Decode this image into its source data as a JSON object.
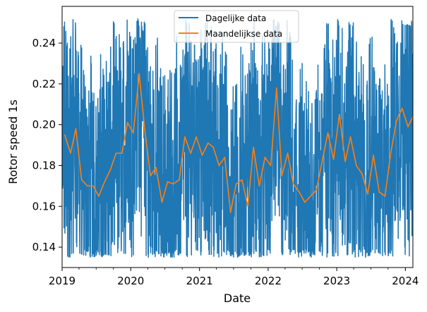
{
  "chart_data": {
    "type": "line",
    "xlabel": "Date",
    "ylabel": "Rotor speed 1s",
    "x_range": [
      "2019-01-01",
      "2024-02-10"
    ],
    "ylim": [
      0.13,
      0.258
    ],
    "x_ticks": [
      {
        "date": "2019-01-01",
        "label": "2019"
      },
      {
        "date": "2020-01-01",
        "label": "2020"
      },
      {
        "date": "2021-01-01",
        "label": "2021"
      },
      {
        "date": "2022-01-01",
        "label": "2022"
      },
      {
        "date": "2023-01-01",
        "label": "2023"
      },
      {
        "date": "2024-01-01",
        "label": "2024"
      }
    ],
    "y_ticks": [
      0.14,
      0.16,
      0.18,
      0.2,
      0.22,
      0.24
    ],
    "y_tick_labels": [
      "0.14",
      "0.16",
      "0.18",
      "0.20",
      "0.22",
      "0.24"
    ],
    "grid": false,
    "legend": {
      "placement": "upper-center",
      "entries": [
        "Dagelijke data",
        "Maandelijkse data"
      ]
    },
    "colors": {
      "daily": "#1f77b4",
      "monthly": "#ff7f0e"
    },
    "series": [
      {
        "name": "Dagelijke data",
        "color": "#1f77b4",
        "frequency": "daily",
        "approx_min": 0.135,
        "approx_max": 0.252
      },
      {
        "name": "Maandelijkse data",
        "color": "#ff7f0e",
        "frequency": "monthly",
        "points": [
          [
            "2019-01-15",
            0.195
          ],
          [
            "2019-02-15",
            0.186
          ],
          [
            "2019-03-15",
            0.198
          ],
          [
            "2019-04-15",
            0.173
          ],
          [
            "2019-05-15",
            0.17
          ],
          [
            "2019-06-15",
            0.17
          ],
          [
            "2019-07-15",
            0.165
          ],
          [
            "2019-08-15",
            0.172
          ],
          [
            "2019-09-15",
            0.178
          ],
          [
            "2019-10-15",
            0.186
          ],
          [
            "2019-11-15",
            0.186
          ],
          [
            "2019-12-15",
            0.201
          ],
          [
            "2020-01-15",
            0.196
          ],
          [
            "2020-02-15",
            0.225
          ],
          [
            "2020-03-15",
            0.198
          ],
          [
            "2020-04-15",
            0.175
          ],
          [
            "2020-05-15",
            0.179
          ],
          [
            "2020-06-15",
            0.162
          ],
          [
            "2020-07-15",
            0.172
          ],
          [
            "2020-08-15",
            0.171
          ],
          [
            "2020-09-15",
            0.173
          ],
          [
            "2020-10-15",
            0.194
          ],
          [
            "2020-11-15",
            0.186
          ],
          [
            "2020-12-15",
            0.194
          ],
          [
            "2021-01-15",
            0.185
          ],
          [
            "2021-02-15",
            0.191
          ],
          [
            "2021-03-15",
            0.189
          ],
          [
            "2021-04-15",
            0.18
          ],
          [
            "2021-05-15",
            0.184
          ],
          [
            "2021-06-15",
            0.157
          ],
          [
            "2021-07-15",
            0.171
          ],
          [
            "2021-08-15",
            0.173
          ],
          [
            "2021-09-15",
            0.16
          ],
          [
            "2021-10-15",
            0.189
          ],
          [
            "2021-11-15",
            0.17
          ],
          [
            "2021-12-15",
            0.184
          ],
          [
            "2022-01-15",
            0.18
          ],
          [
            "2022-02-15",
            0.218
          ],
          [
            "2022-03-15",
            0.175
          ],
          [
            "2022-04-15",
            0.186
          ],
          [
            "2022-05-15",
            0.171
          ],
          [
            "2022-06-15",
            0.167
          ],
          [
            "2022-07-15",
            0.162
          ],
          [
            "2022-08-15",
            0.165
          ],
          [
            "2022-09-15",
            0.168
          ],
          [
            "2022-10-15",
            0.182
          ],
          [
            "2022-11-15",
            0.196
          ],
          [
            "2022-12-15",
            0.183
          ],
          [
            "2023-01-15",
            0.205
          ],
          [
            "2023-02-15",
            0.182
          ],
          [
            "2023-03-15",
            0.194
          ],
          [
            "2023-04-15",
            0.18
          ],
          [
            "2023-05-15",
            0.176
          ],
          [
            "2023-06-15",
            0.166
          ],
          [
            "2023-07-15",
            0.185
          ],
          [
            "2023-08-15",
            0.167
          ],
          [
            "2023-09-15",
            0.165
          ],
          [
            "2023-10-15",
            0.186
          ],
          [
            "2023-11-15",
            0.202
          ],
          [
            "2023-12-15",
            0.208
          ],
          [
            "2024-01-15",
            0.199
          ],
          [
            "2024-02-10",
            0.204
          ]
        ]
      }
    ]
  }
}
